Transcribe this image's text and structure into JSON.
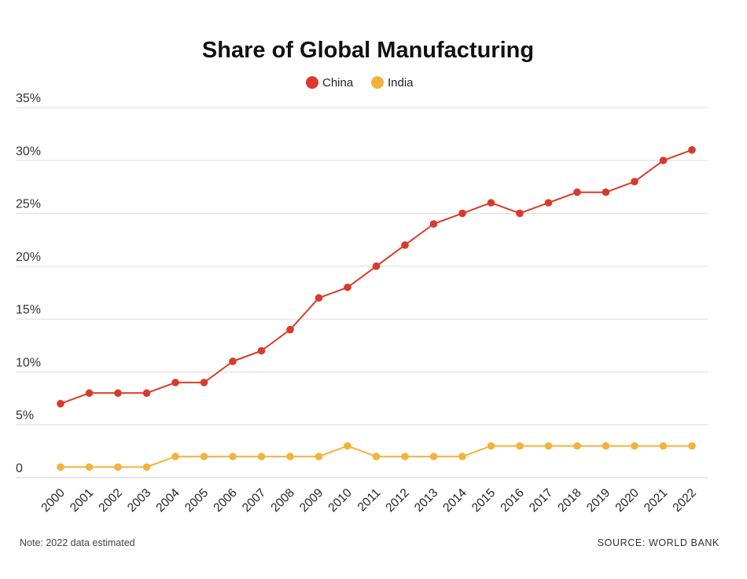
{
  "colors": {
    "china": "#d93a2b",
    "india": "#f2b33d"
  },
  "chart_data": {
    "type": "line",
    "title": "Share of Global Manufacturing",
    "categories": [
      "2000",
      "2001",
      "2002",
      "2003",
      "2004",
      "2005",
      "2006",
      "2007",
      "2008",
      "2009",
      "2010",
      "2011",
      "2012",
      "2013",
      "2014",
      "2015",
      "2016",
      "2017",
      "2018",
      "2019",
      "2020",
      "2021",
      "2022"
    ],
    "series": [
      {
        "name": "China",
        "values": [
          7,
          8,
          8,
          8,
          9,
          9,
          11,
          12,
          14,
          17,
          18,
          20,
          22,
          24,
          25,
          26,
          25,
          26,
          27,
          27,
          28,
          30,
          31
        ]
      },
      {
        "name": "India",
        "values": [
          1,
          1,
          1,
          1,
          2,
          2,
          2,
          2,
          2,
          2,
          3,
          2,
          2,
          2,
          2,
          3,
          3,
          3,
          3,
          3,
          3,
          3,
          3
        ]
      }
    ],
    "ylim": [
      0,
      35
    ],
    "yticks": [
      0,
      5,
      10,
      15,
      20,
      25,
      30,
      35
    ],
    "ytick_labels": [
      "0",
      "5%",
      "10%",
      "15%",
      "20%",
      "25%",
      "30%",
      "35%"
    ],
    "xlabel": "",
    "ylabel": "",
    "grid": true,
    "legend_position": "top-center"
  },
  "footer": {
    "note": "Note: 2022 data estimated",
    "source": "SOURCE: WORLD BANK"
  }
}
